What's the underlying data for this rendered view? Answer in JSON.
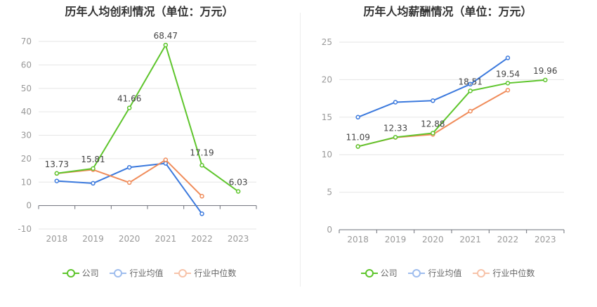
{
  "chart_data": [
    {
      "type": "line",
      "title": "历年人均创利情况（单位：万元）",
      "categories": [
        "2018",
        "2019",
        "2020",
        "2021",
        "2022",
        "2023"
      ],
      "ylim": [
        -10,
        70
      ],
      "yticks": [
        -10,
        0,
        10,
        20,
        30,
        40,
        50,
        60,
        70
      ],
      "grid": true,
      "legend_position": "bottom",
      "series": [
        {
          "name": "公司",
          "color": "#5ec52c",
          "values": [
            13.73,
            15.81,
            41.66,
            68.47,
            17.19,
            6.03
          ],
          "labels": [
            "13.73",
            "15.81",
            "41.66",
            "68.47",
            "17.19",
            "6.03"
          ]
        },
        {
          "name": "行业均值",
          "color": "#3b79dd",
          "values": [
            10.5,
            9.5,
            16.3,
            18.0,
            -3.5,
            null
          ]
        },
        {
          "name": "行业中位数",
          "color": "#f08c5a",
          "values": [
            13.7,
            15.3,
            9.8,
            19.5,
            4.0,
            null
          ]
        }
      ]
    },
    {
      "type": "line",
      "title": "历年人均薪酬情况（单位：万元）",
      "categories": [
        "2018",
        "2019",
        "2020",
        "2021",
        "2022",
        "2023"
      ],
      "ylim": [
        0,
        25
      ],
      "yticks": [
        0,
        5,
        10,
        15,
        20,
        25
      ],
      "grid": true,
      "legend_position": "bottom",
      "series": [
        {
          "name": "公司",
          "color": "#5ec52c",
          "values": [
            11.09,
            12.33,
            12.88,
            18.51,
            19.54,
            19.96
          ],
          "labels": [
            "11.09",
            "12.33",
            "12.88",
            "18.51",
            "19.54",
            "19.96"
          ]
        },
        {
          "name": "行业均值",
          "color": "#3b79dd",
          "values": [
            15.0,
            17.0,
            17.2,
            19.4,
            22.9,
            null
          ]
        },
        {
          "name": "行业中位数",
          "color": "#f08c5a",
          "values": [
            11.1,
            12.3,
            12.7,
            15.8,
            18.6,
            null
          ]
        }
      ]
    }
  ]
}
